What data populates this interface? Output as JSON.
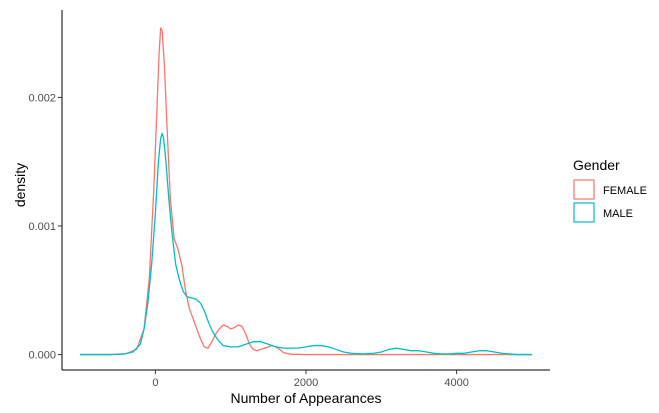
{
  "chart_data": {
    "type": "line",
    "title": "",
    "xlabel": "Number of Appearances",
    "ylabel": "density",
    "xlim": [
      -1240,
      5240
    ],
    "ylim": [
      -0.00012,
      0.00268
    ],
    "x_ticks": [
      0,
      2000,
      4000
    ],
    "y_ticks": [
      0.0,
      0.001,
      0.002
    ],
    "x_tick_labels": [
      "0",
      "2000",
      "4000"
    ],
    "y_tick_labels": [
      "0.000",
      "0.001",
      "0.002"
    ],
    "grid": false,
    "legend": {
      "title": "Gender",
      "position": "right"
    },
    "series": [
      {
        "name": "FEMALE",
        "color": "#F8766D",
        "points": [
          [
            -1000,
            0.0
          ],
          [
            -600,
            0.0
          ],
          [
            -400,
            5e-06
          ],
          [
            -250,
            4e-05
          ],
          [
            -150,
            0.0002
          ],
          [
            -80,
            0.0006
          ],
          [
            -20,
            0.0013
          ],
          [
            20,
            0.0019
          ],
          [
            50,
            0.00235
          ],
          [
            70,
            0.00254
          ],
          [
            90,
            0.00252
          ],
          [
            120,
            0.00225
          ],
          [
            160,
            0.0017
          ],
          [
            200,
            0.0012
          ],
          [
            250,
            0.0009
          ],
          [
            300,
            0.00082
          ],
          [
            350,
            0.0007
          ],
          [
            400,
            0.0005
          ],
          [
            450,
            0.00036
          ],
          [
            500,
            0.00028
          ],
          [
            550,
            0.0002
          ],
          [
            600,
            0.00012
          ],
          [
            650,
            6e-05
          ],
          [
            700,
            5e-05
          ],
          [
            750,
            0.0001
          ],
          [
            800,
            0.00016
          ],
          [
            850,
            0.0002
          ],
          [
            900,
            0.00023
          ],
          [
            950,
            0.00022
          ],
          [
            1000,
            0.0002
          ],
          [
            1050,
            0.00021
          ],
          [
            1100,
            0.00023
          ],
          [
            1150,
            0.00022
          ],
          [
            1200,
            0.00016
          ],
          [
            1250,
            8e-05
          ],
          [
            1300,
            4e-05
          ],
          [
            1350,
            3e-05
          ],
          [
            1400,
            4e-05
          ],
          [
            1450,
            5e-05
          ],
          [
            1500,
            6e-05
          ],
          [
            1550,
            7e-05
          ],
          [
            1600,
            6e-05
          ],
          [
            1650,
            4e-05
          ],
          [
            1700,
            1.5e-05
          ],
          [
            1800,
            3e-06
          ],
          [
            2000,
            0.0
          ],
          [
            3000,
            0.0
          ],
          [
            4000,
            0.0
          ],
          [
            5000,
            0.0
          ]
        ]
      },
      {
        "name": "MALE",
        "color": "#00BFC4",
        "points": [
          [
            -1000,
            0.0
          ],
          [
            -600,
            0.0
          ],
          [
            -400,
            5e-06
          ],
          [
            -300,
            2e-05
          ],
          [
            -200,
            8e-05
          ],
          [
            -150,
            0.0002
          ],
          [
            -100,
            0.0004
          ],
          [
            -50,
            0.0007
          ],
          [
            0,
            0.0011
          ],
          [
            40,
            0.0015
          ],
          [
            70,
            0.00168
          ],
          [
            90,
            0.00172
          ],
          [
            110,
            0.00168
          ],
          [
            140,
            0.0015
          ],
          [
            180,
            0.0012
          ],
          [
            220,
            0.00095
          ],
          [
            270,
            0.0007
          ],
          [
            320,
            0.00058
          ],
          [
            370,
            0.00049
          ],
          [
            420,
            0.00045
          ],
          [
            480,
            0.00044
          ],
          [
            540,
            0.00043
          ],
          [
            600,
            0.0004
          ],
          [
            650,
            0.00034
          ],
          [
            700,
            0.00026
          ],
          [
            750,
            0.00019
          ],
          [
            800,
            0.00014
          ],
          [
            850,
            0.0001
          ],
          [
            900,
            7e-05
          ],
          [
            1000,
            6e-05
          ],
          [
            1100,
            6e-05
          ],
          [
            1200,
            8e-05
          ],
          [
            1300,
            0.0001
          ],
          [
            1400,
            0.0001
          ],
          [
            1500,
            8e-05
          ],
          [
            1600,
            6e-05
          ],
          [
            1700,
            5e-05
          ],
          [
            1800,
            5e-05
          ],
          [
            1900,
            5e-05
          ],
          [
            2000,
            6e-05
          ],
          [
            2100,
            7e-05
          ],
          [
            2200,
            7e-05
          ],
          [
            2300,
            6e-05
          ],
          [
            2400,
            4e-05
          ],
          [
            2500,
            2e-05
          ],
          [
            2600,
            1e-05
          ],
          [
            2750,
            5e-06
          ],
          [
            2900,
            1e-05
          ],
          [
            3000,
            2e-05
          ],
          [
            3100,
            4e-05
          ],
          [
            3200,
            5e-05
          ],
          [
            3300,
            4e-05
          ],
          [
            3400,
            3e-05
          ],
          [
            3500,
            3e-05
          ],
          [
            3600,
            2e-05
          ],
          [
            3700,
            1e-05
          ],
          [
            3800,
            5e-06
          ],
          [
            3900,
            5e-06
          ],
          [
            4000,
            1e-05
          ],
          [
            4100,
            1e-05
          ],
          [
            4200,
            2e-05
          ],
          [
            4300,
            3e-05
          ],
          [
            4400,
            3e-05
          ],
          [
            4500,
            2e-05
          ],
          [
            4600,
            1e-05
          ],
          [
            4700,
            5e-06
          ],
          [
            4800,
            0.0
          ],
          [
            5000,
            0.0
          ]
        ]
      }
    ]
  }
}
